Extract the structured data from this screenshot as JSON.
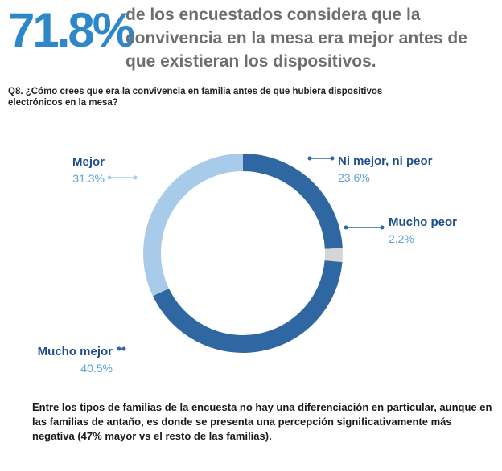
{
  "header": {
    "stat": "71.8%",
    "headline": "de los encuestados considera que la convivencia en la mesa era mejor antes de que existieran los dispositivos."
  },
  "question": "Q8. ¿Cómo crees que era la convivencia en familia antes de que hubiera dispositivos electrónicos en la mesa?",
  "chart_data": {
    "type": "pie",
    "variant": "donut",
    "title": "Q8. ¿Cómo crees que era la convivencia en familia antes de que hubiera dispositivos electrónicos en la mesa?",
    "slices": [
      {
        "label": "Ni mejor, ni peor",
        "value": 23.6,
        "value_label": "23.6%",
        "color": "#2f67a3"
      },
      {
        "label": "Mucho peor",
        "value": 2.2,
        "value_label": "2.2%",
        "color": "#d6d6d6"
      },
      {
        "label": "Mucho mejor",
        "value": 40.5,
        "value_label": "40.5%",
        "color": "#2f67a3"
      },
      {
        "label": "Mejor",
        "value": 31.3,
        "value_label": "31.3%",
        "color": "#a9cbea"
      }
    ],
    "start": "top, clockwise"
  },
  "footer": "Entre los tipos de familias de la encuesta no hay una diferenciación en particular, aunque en las familias de antaño, es donde se presenta una percepción significativamente más negativa (47% mayor vs el resto de las familias)."
}
